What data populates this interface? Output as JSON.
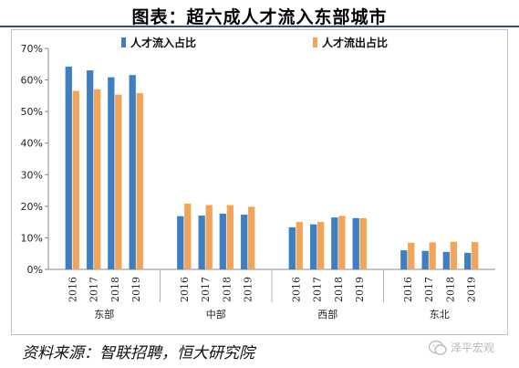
{
  "title": "图表：超六成人才流入东部城市",
  "source": "资料来源：智联招聘，恒大研究院",
  "watermark": "泽平宏观",
  "colors": {
    "inflow": "#3f7fbf",
    "outflow": "#f2a45a",
    "axis": "#888888",
    "grid": "none"
  },
  "chart_data": {
    "type": "bar",
    "groups": [
      "东部",
      "中部",
      "西部",
      "东北"
    ],
    "years": [
      "2016",
      "2017",
      "2018",
      "2019"
    ],
    "series": [
      {
        "name": "人才流入占比",
        "values": [
          64.2,
          63.0,
          60.8,
          61.5,
          16.8,
          17.0,
          17.6,
          17.3,
          13.3,
          14.2,
          16.4,
          16.2,
          6.0,
          5.8,
          5.5,
          5.2
        ]
      },
      {
        "name": "人才流出占比",
        "values": [
          56.5,
          57.0,
          55.3,
          55.8,
          20.8,
          20.3,
          20.3,
          19.8,
          15.0,
          15.0,
          16.9,
          16.2,
          8.4,
          8.5,
          8.7,
          8.6
        ]
      }
    ],
    "ylim": [
      0,
      70
    ],
    "yticks": [
      "0%",
      "10%",
      "20%",
      "30%",
      "40%",
      "50%",
      "60%",
      "70%"
    ],
    "legend_position": "top",
    "grid": false
  }
}
